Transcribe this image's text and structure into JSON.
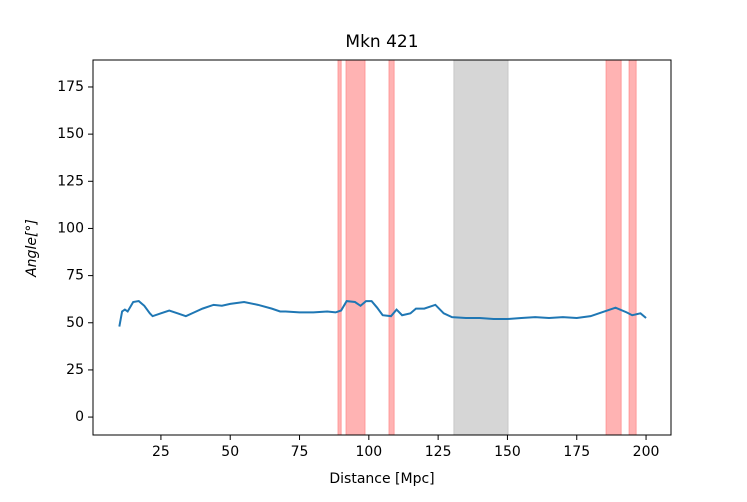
{
  "chart_data": {
    "type": "line",
    "title": "Mkn 421",
    "xlabel": "Distance [Mpc]",
    "ylabel": "Angle[°]",
    "x": [
      10,
      11,
      12,
      13,
      15,
      17,
      19,
      21,
      22,
      25,
      28,
      31,
      34,
      37,
      40,
      44,
      47,
      50,
      55,
      60,
      65,
      68,
      70,
      75,
      80,
      85,
      88,
      90,
      92,
      95,
      97,
      99,
      101,
      103,
      105,
      108,
      110,
      112,
      115,
      117,
      120,
      124,
      127,
      130,
      135,
      140,
      145,
      150,
      155,
      160,
      165,
      170,
      175,
      180,
      185,
      189,
      193,
      195,
      198,
      200
    ],
    "series": [
      {
        "name": "Angle",
        "color": "#1f77b4",
        "values": [
          48,
          56,
          57,
          56,
          61,
          61.5,
          59,
          55,
          53.5,
          55,
          56.5,
          55,
          53.5,
          55.5,
          57.5,
          59.5,
          59,
          60,
          61,
          59.5,
          57.5,
          56,
          56,
          55.5,
          55.5,
          56,
          55.5,
          56.5,
          61.5,
          61,
          59,
          61.5,
          61.5,
          58,
          54,
          53.5,
          57,
          54,
          55,
          57.5,
          57.5,
          59.5,
          55,
          53,
          52.5,
          52.5,
          52,
          52,
          52.5,
          53,
          52.5,
          53,
          52.5,
          53.5,
          56,
          58,
          55.5,
          54,
          55,
          52.5
        ]
      }
    ],
    "spans": [
      {
        "xmin": 88.9,
        "xmax": 90.0,
        "color": "#ff9999"
      },
      {
        "xmin": 91.8,
        "xmax": 98.6,
        "color": "#ff9999"
      },
      {
        "xmin": 107.3,
        "xmax": 109.1,
        "color": "#ff9999"
      },
      {
        "xmin": 130.7,
        "xmax": 150.2,
        "color": "#c8c8c8"
      },
      {
        "xmin": 185.6,
        "xmax": 191.0,
        "color": "#ff9999"
      },
      {
        "xmin": 193.9,
        "xmax": 196.4,
        "color": "#ff9999"
      }
    ],
    "xlim": [
      0.5,
      209
    ],
    "ylim": [
      -9.5,
      189.3
    ],
    "xticks": [
      25,
      50,
      75,
      100,
      125,
      150,
      175,
      200
    ],
    "yticks": [
      0,
      25,
      50,
      75,
      100,
      125,
      150,
      175
    ]
  }
}
